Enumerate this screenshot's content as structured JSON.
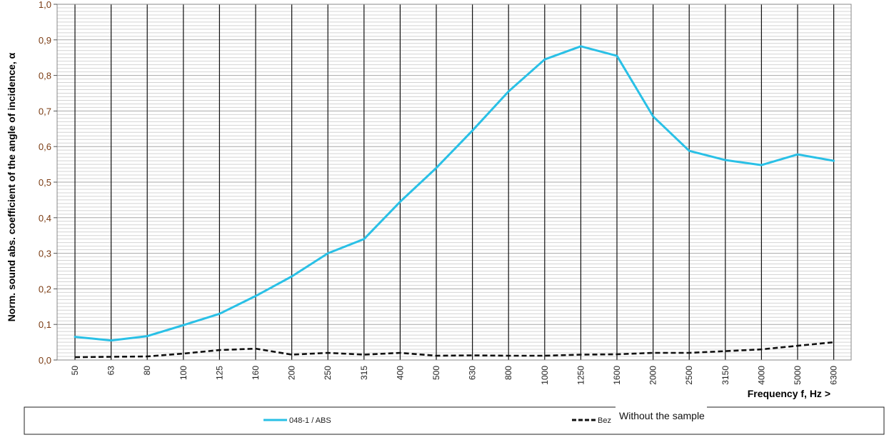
{
  "chart_data": {
    "type": "line",
    "title": "",
    "xlabel": "Frequency f, Hz >",
    "ylabel": "Norm. sound abs. coefficient of the angle of incidence, α",
    "categories": [
      "50",
      "63",
      "80",
      "100",
      "125",
      "160",
      "200",
      "250",
      "315",
      "400",
      "500",
      "630",
      "800",
      "1000",
      "1250",
      "1600",
      "2000",
      "2500",
      "3150",
      "4000",
      "5000",
      "6300"
    ],
    "yticks": [
      "0,0",
      "0,1",
      "0,2",
      "0,3",
      "0,4",
      "0,5",
      "0,6",
      "0,7",
      "0,8",
      "0,9",
      "1,0"
    ],
    "ylim": [
      0,
      1
    ],
    "grid": true,
    "legend_position": "bottom",
    "series": [
      {
        "name": "048-1 / ABS",
        "color": "#29c0e6",
        "style": "solid",
        "values": [
          0.065,
          0.055,
          0.067,
          0.098,
          0.13,
          0.18,
          0.235,
          0.3,
          0.34,
          0.445,
          0.54,
          0.645,
          0.755,
          0.845,
          0.882,
          0.855,
          0.685,
          0.588,
          0.562,
          0.548,
          0.578,
          0.56
        ]
      },
      {
        "name": "Bez",
        "color": "#111111",
        "style": "dashed",
        "values": [
          0.008,
          0.009,
          0.01,
          0.018,
          0.028,
          0.032,
          0.015,
          0.02,
          0.015,
          0.02,
          0.012,
          0.013,
          0.012,
          0.012,
          0.015,
          0.016,
          0.02,
          0.02,
          0.025,
          0.03,
          0.04,
          0.05
        ]
      }
    ],
    "annotation": "Without the sample"
  }
}
